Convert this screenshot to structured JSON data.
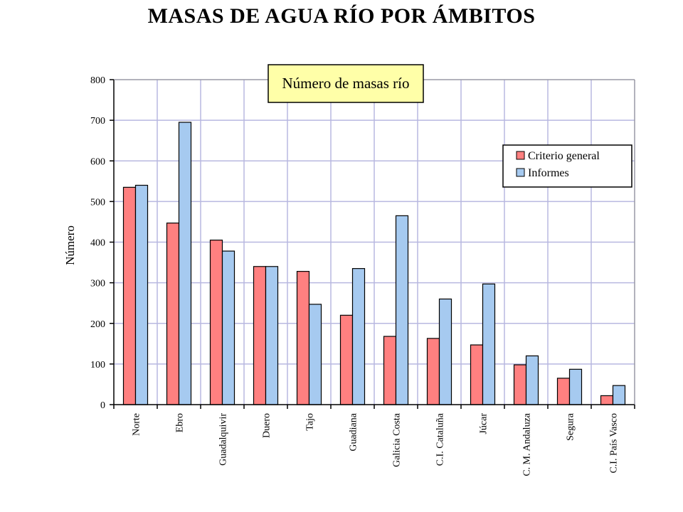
{
  "title": "MASAS DE AGUA RÍO POR ÁMBITOS",
  "chart_data": {
    "type": "bar",
    "title": "Número de masas río",
    "ylabel": "Número",
    "xlabel": "",
    "ylim": [
      0,
      800
    ],
    "yticks": [
      0,
      100,
      200,
      300,
      400,
      500,
      600,
      700,
      800
    ],
    "grid": true,
    "legend_position": "top-right",
    "categories": [
      "Norte",
      "Ebro",
      "Guadalquivir",
      "Duero",
      "Tajo",
      "Guadiana",
      "Galicia Costa",
      "C.I. Cataluña",
      "Júcar",
      "C. M. Andaluza",
      "Segura",
      "C.I. País Vasco"
    ],
    "series": [
      {
        "name": "Criterio general",
        "color": "#ff8080",
        "values": [
          535,
          447,
          405,
          340,
          328,
          220,
          168,
          163,
          147,
          98,
          65,
          22
        ]
      },
      {
        "name": "Informes",
        "color": "#a6caf0",
        "values": [
          540,
          695,
          378,
          340,
          247,
          335,
          465,
          260,
          297,
          120,
          87,
          47
        ]
      }
    ]
  }
}
